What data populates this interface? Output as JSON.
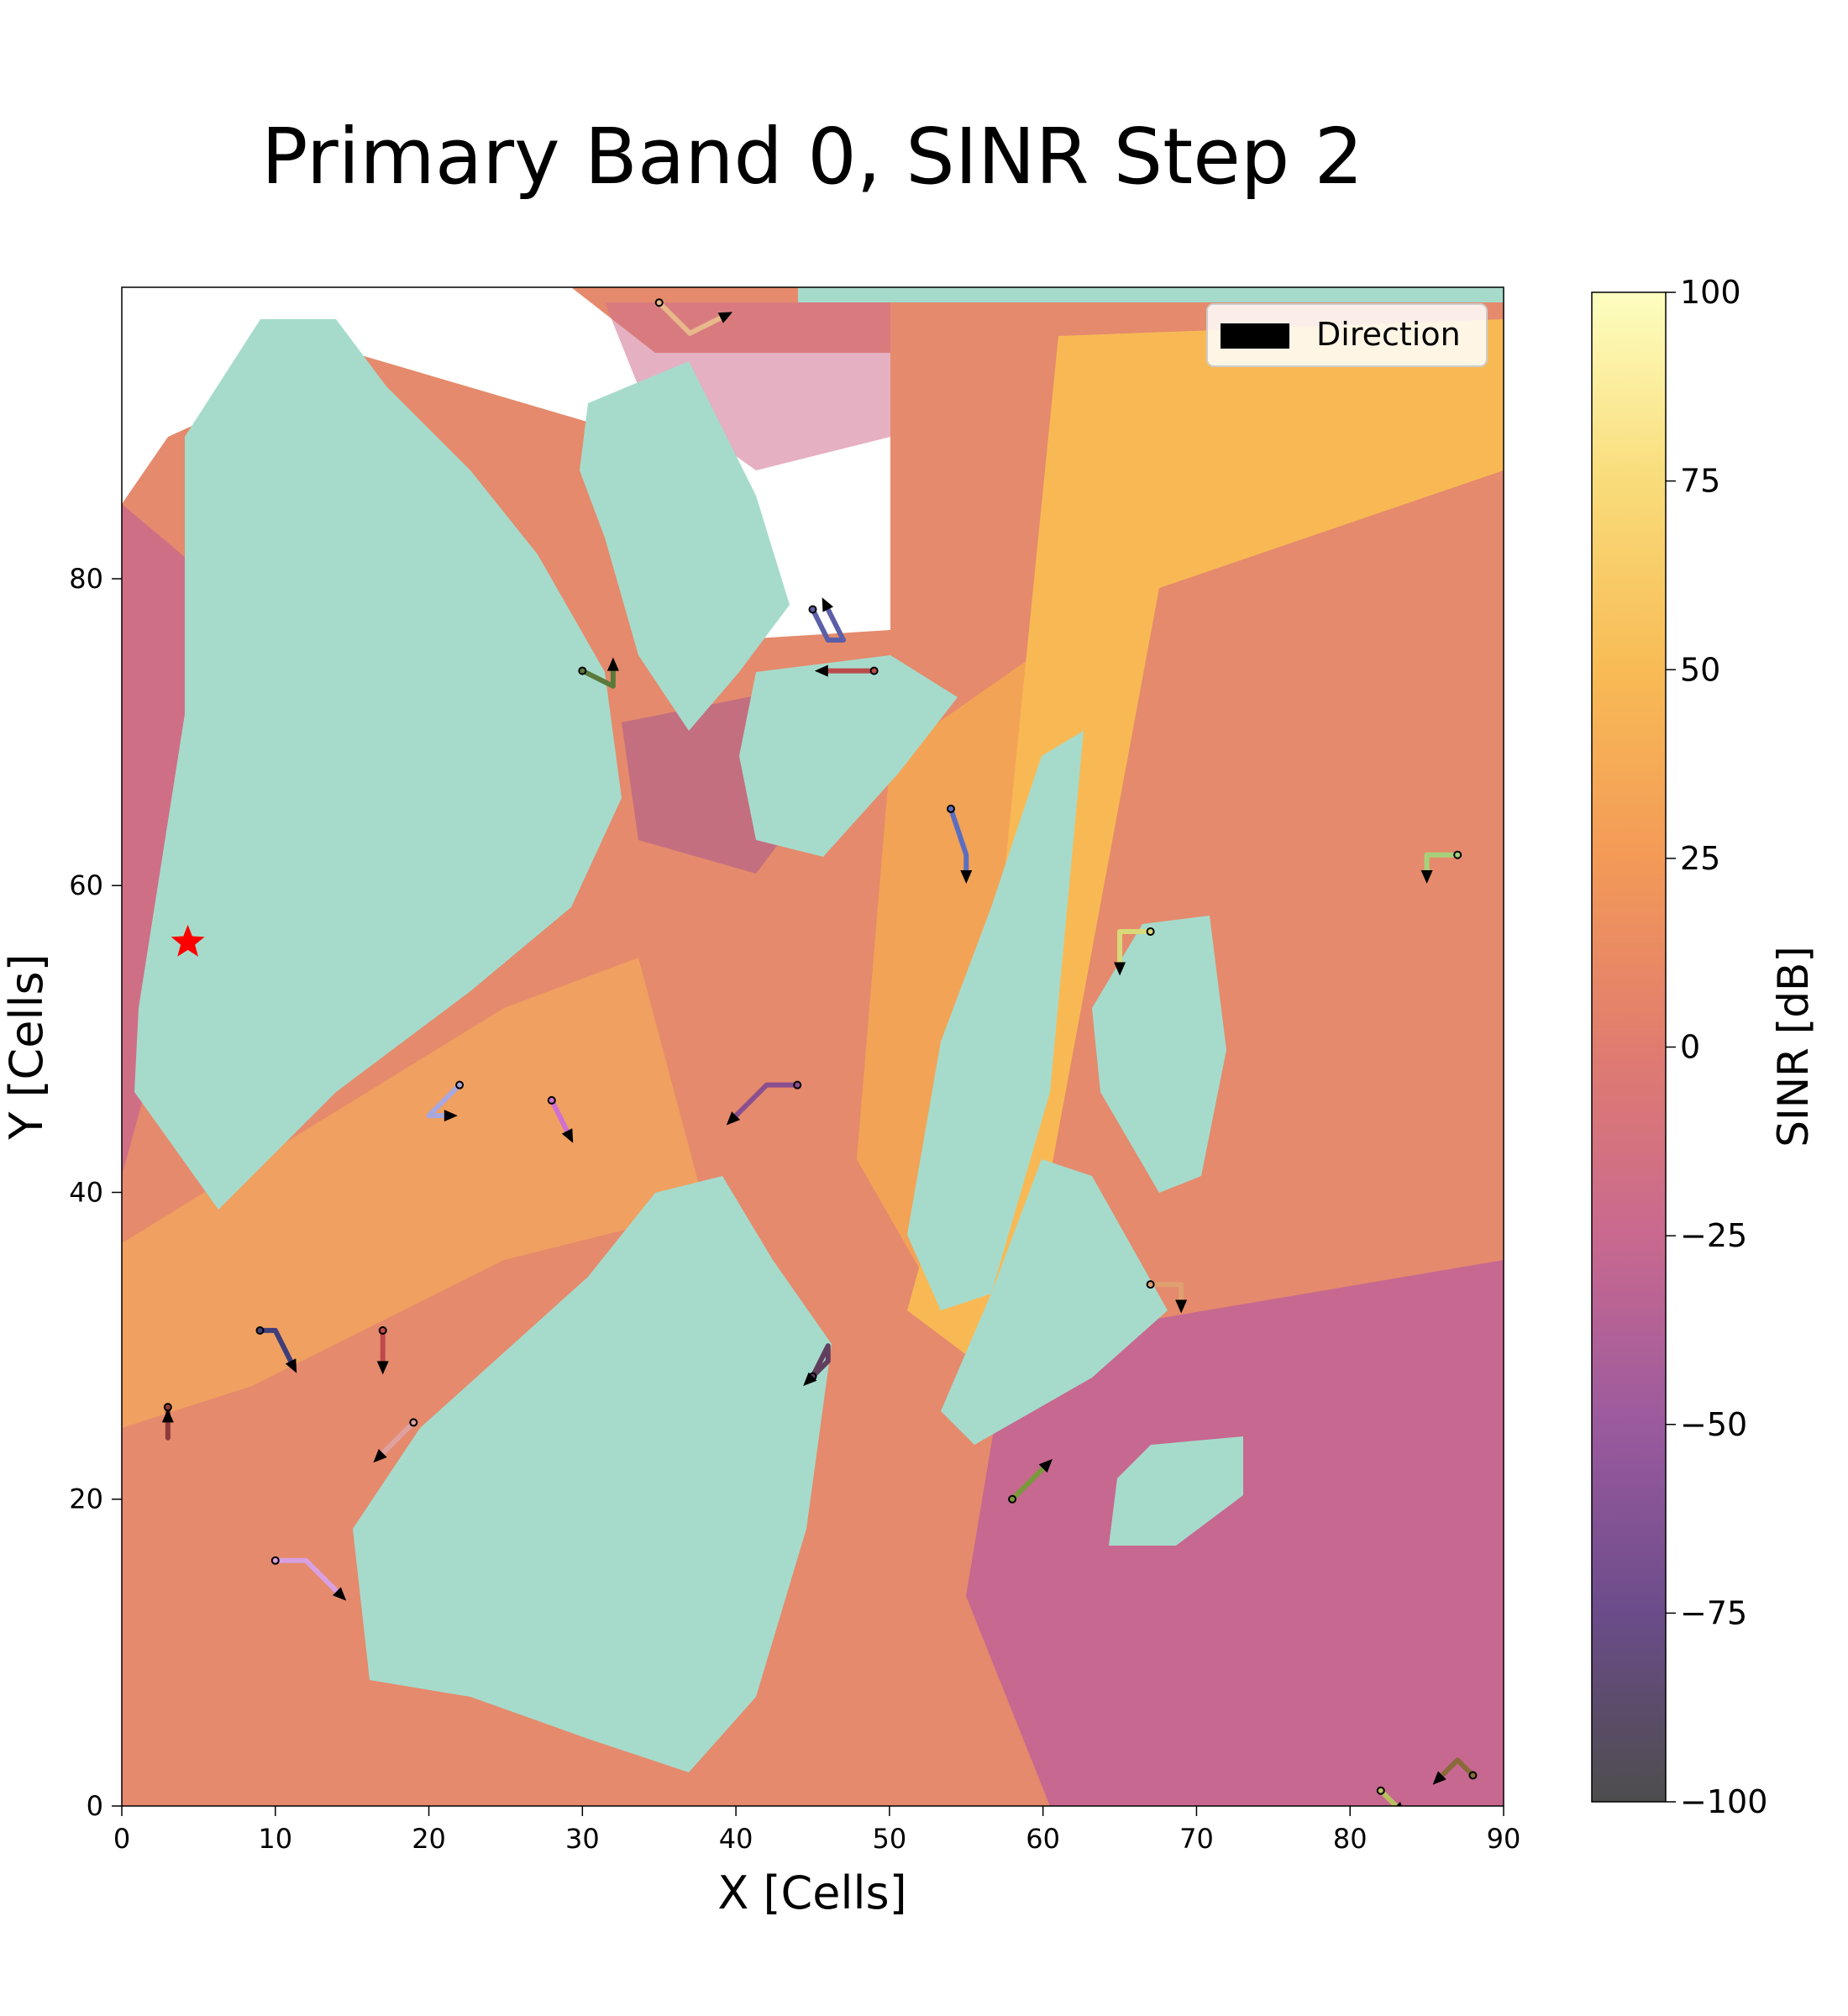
{
  "chart_data": {
    "type": "heatmap",
    "title": "Primary Band 0, SINR Step 2",
    "xlabel": "X [Cells]",
    "ylabel": "Y [Cells]",
    "xlim": [
      0,
      90
    ],
    "ylim": [
      0,
      99
    ],
    "xticks": [
      0,
      10,
      20,
      30,
      40,
      50,
      60,
      70,
      80,
      90
    ],
    "yticks": [
      0,
      20,
      40,
      60,
      80
    ],
    "grid": false,
    "colorbar": {
      "label": "SINR [dB]",
      "range": [
        -100,
        100
      ],
      "ticks": [
        -100,
        -75,
        -50,
        -25,
        0,
        25,
        50,
        75,
        100
      ],
      "tick_labels": [
        "−100",
        "−75",
        "−50",
        "−25",
        "0",
        "25",
        "50",
        "75",
        "100"
      ],
      "colors": [
        "#4d4d4d",
        "#6b4c8a",
        "#9b5a9e",
        "#c9698f",
        "#e07c6f",
        "#f39a57",
        "#f8bb55",
        "#f9dc7a",
        "#fdfec0"
      ]
    },
    "legend": {
      "label": "Direction",
      "position": "top-right"
    },
    "marker": {
      "symbol": "star",
      "color": "#ff0000",
      "x": 4.3,
      "y": 56.3
    },
    "region_colors": {
      "blocked": "#a6dbcc",
      "no_data": "#ffffff"
    },
    "trajectories": [
      {
        "color": "#e8b98a",
        "points": [
          [
            35,
            98
          ],
          [
            37,
            96
          ],
          [
            39,
            97
          ]
        ]
      },
      {
        "color": "#5c5fa8",
        "points": [
          [
            45,
            78
          ],
          [
            46,
            76
          ],
          [
            47,
            76
          ],
          [
            46,
            78
          ]
        ]
      },
      {
        "color": "#5b7a3a",
        "points": [
          [
            30,
            74
          ],
          [
            32,
            73
          ],
          [
            32,
            74
          ]
        ]
      },
      {
        "color": "#b94b4b",
        "points": [
          [
            49,
            74
          ],
          [
            46,
            74
          ]
        ]
      },
      {
        "color": "#5b6ec0",
        "points": [
          [
            54,
            65
          ],
          [
            55,
            62
          ],
          [
            55,
            61
          ]
        ]
      },
      {
        "color": "#a6d17a",
        "points": [
          [
            87,
            62
          ],
          [
            85,
            62
          ],
          [
            85,
            61
          ]
        ]
      },
      {
        "color": "#d9d97a",
        "points": [
          [
            67,
            57
          ],
          [
            65,
            57
          ],
          [
            65,
            55
          ]
        ]
      },
      {
        "color": "#a8a8e0",
        "points": [
          [
            22,
            47
          ],
          [
            20,
            45
          ],
          [
            21,
            45
          ]
        ]
      },
      {
        "color": "#d070d0",
        "points": [
          [
            28,
            46
          ],
          [
            29,
            44
          ]
        ]
      },
      {
        "color": "#8a4f8f",
        "points": [
          [
            44,
            47
          ],
          [
            42,
            47
          ],
          [
            40,
            45
          ]
        ]
      },
      {
        "color": "#e0a070",
        "points": [
          [
            67,
            34
          ],
          [
            69,
            34
          ],
          [
            69,
            33
          ]
        ]
      },
      {
        "color": "#3e3e7a",
        "points": [
          [
            9,
            31
          ],
          [
            10,
            31
          ],
          [
            11,
            29
          ]
        ]
      },
      {
        "color": "#c04a4a",
        "points": [
          [
            17,
            31
          ],
          [
            17,
            29
          ]
        ]
      },
      {
        "color": "#5f3e5e",
        "points": [
          [
            45,
            28
          ],
          [
            46,
            30
          ],
          [
            46,
            29
          ],
          [
            45,
            28
          ]
        ]
      },
      {
        "color": "#8f3a3a",
        "points": [
          [
            3,
            26
          ],
          [
            3,
            24
          ],
          [
            3,
            25
          ]
        ]
      },
      {
        "color": "#e0a0a0",
        "points": [
          [
            19,
            25
          ],
          [
            17,
            23
          ]
        ]
      },
      {
        "color": "#7a9a3a",
        "points": [
          [
            58,
            20
          ],
          [
            60,
            22
          ]
        ]
      },
      {
        "color": "#d8a0e0",
        "points": [
          [
            10,
            16
          ],
          [
            12,
            16
          ],
          [
            14,
            14
          ]
        ]
      },
      {
        "color": "#8a6a3a",
        "points": [
          [
            88,
            2
          ],
          [
            87,
            3
          ],
          [
            86,
            2
          ]
        ]
      },
      {
        "color": "#b8c060",
        "points": [
          [
            82,
            1
          ],
          [
            83,
            0
          ]
        ]
      }
    ]
  }
}
